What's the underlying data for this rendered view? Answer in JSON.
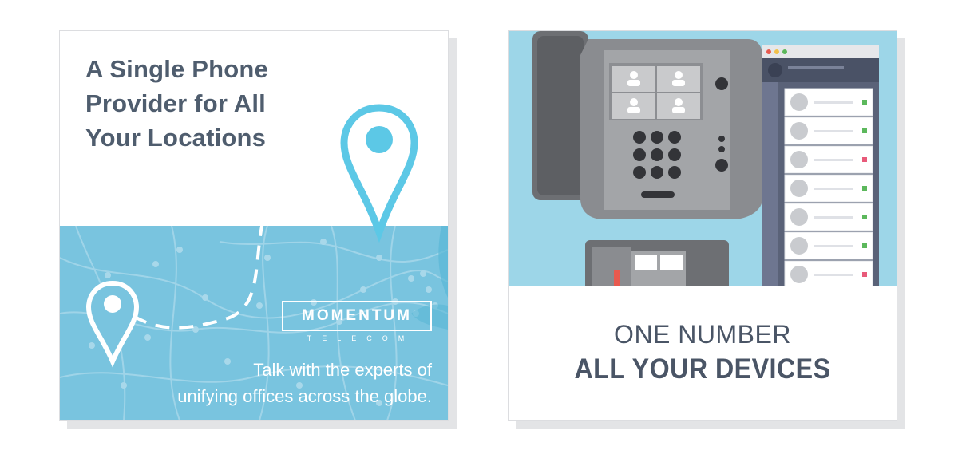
{
  "left_card": {
    "headline": [
      "A Single Phone",
      "Provider for All",
      "Your Locations"
    ],
    "logo": {
      "name": "MOMENTUM",
      "sub": "TELECOM"
    },
    "tagline": [
      "Talk with the experts of",
      "unifying offices across the globe."
    ]
  },
  "right_card": {
    "caption_line1": "ONE NUMBER",
    "caption_line2": "ALL YOUR DEVICES"
  },
  "colors": {
    "map_blue": "#79c4df",
    "pin_blue": "#5cc8e6",
    "heading_gray": "#4f5d6e",
    "illus_bg": "#9dd6e8"
  }
}
